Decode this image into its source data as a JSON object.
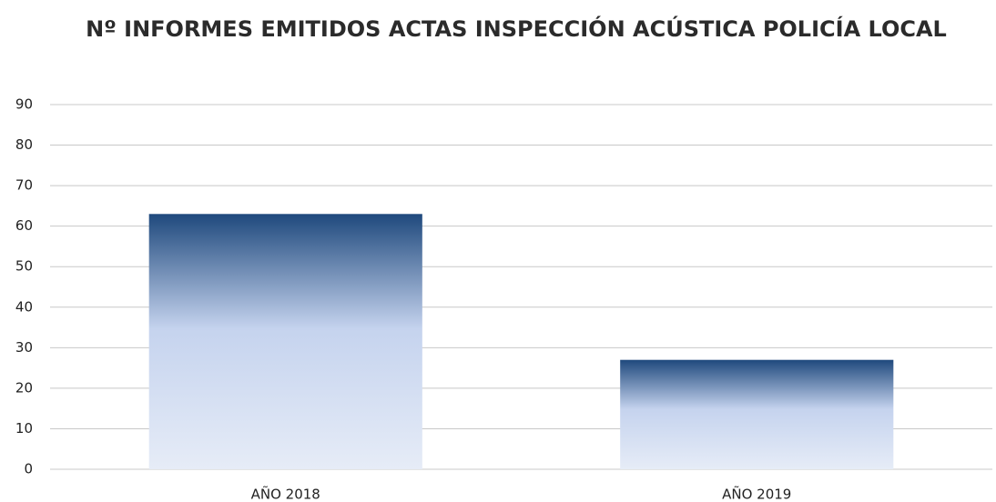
{
  "chart_data": {
    "type": "bar",
    "title": "Nº INFORMES EMITIDOS ACTAS INSPECCIÓN ACÚSTICA POLICÍA LOCAL",
    "categories": [
      "AÑO 2018",
      "AÑO 2019"
    ],
    "values": [
      63,
      27
    ],
    "color": "#1f497d",
    "ylim": [
      0,
      90
    ],
    "yticks": [
      0,
      10,
      20,
      30,
      40,
      50,
      60,
      70,
      80,
      90
    ],
    "grid": true
  }
}
